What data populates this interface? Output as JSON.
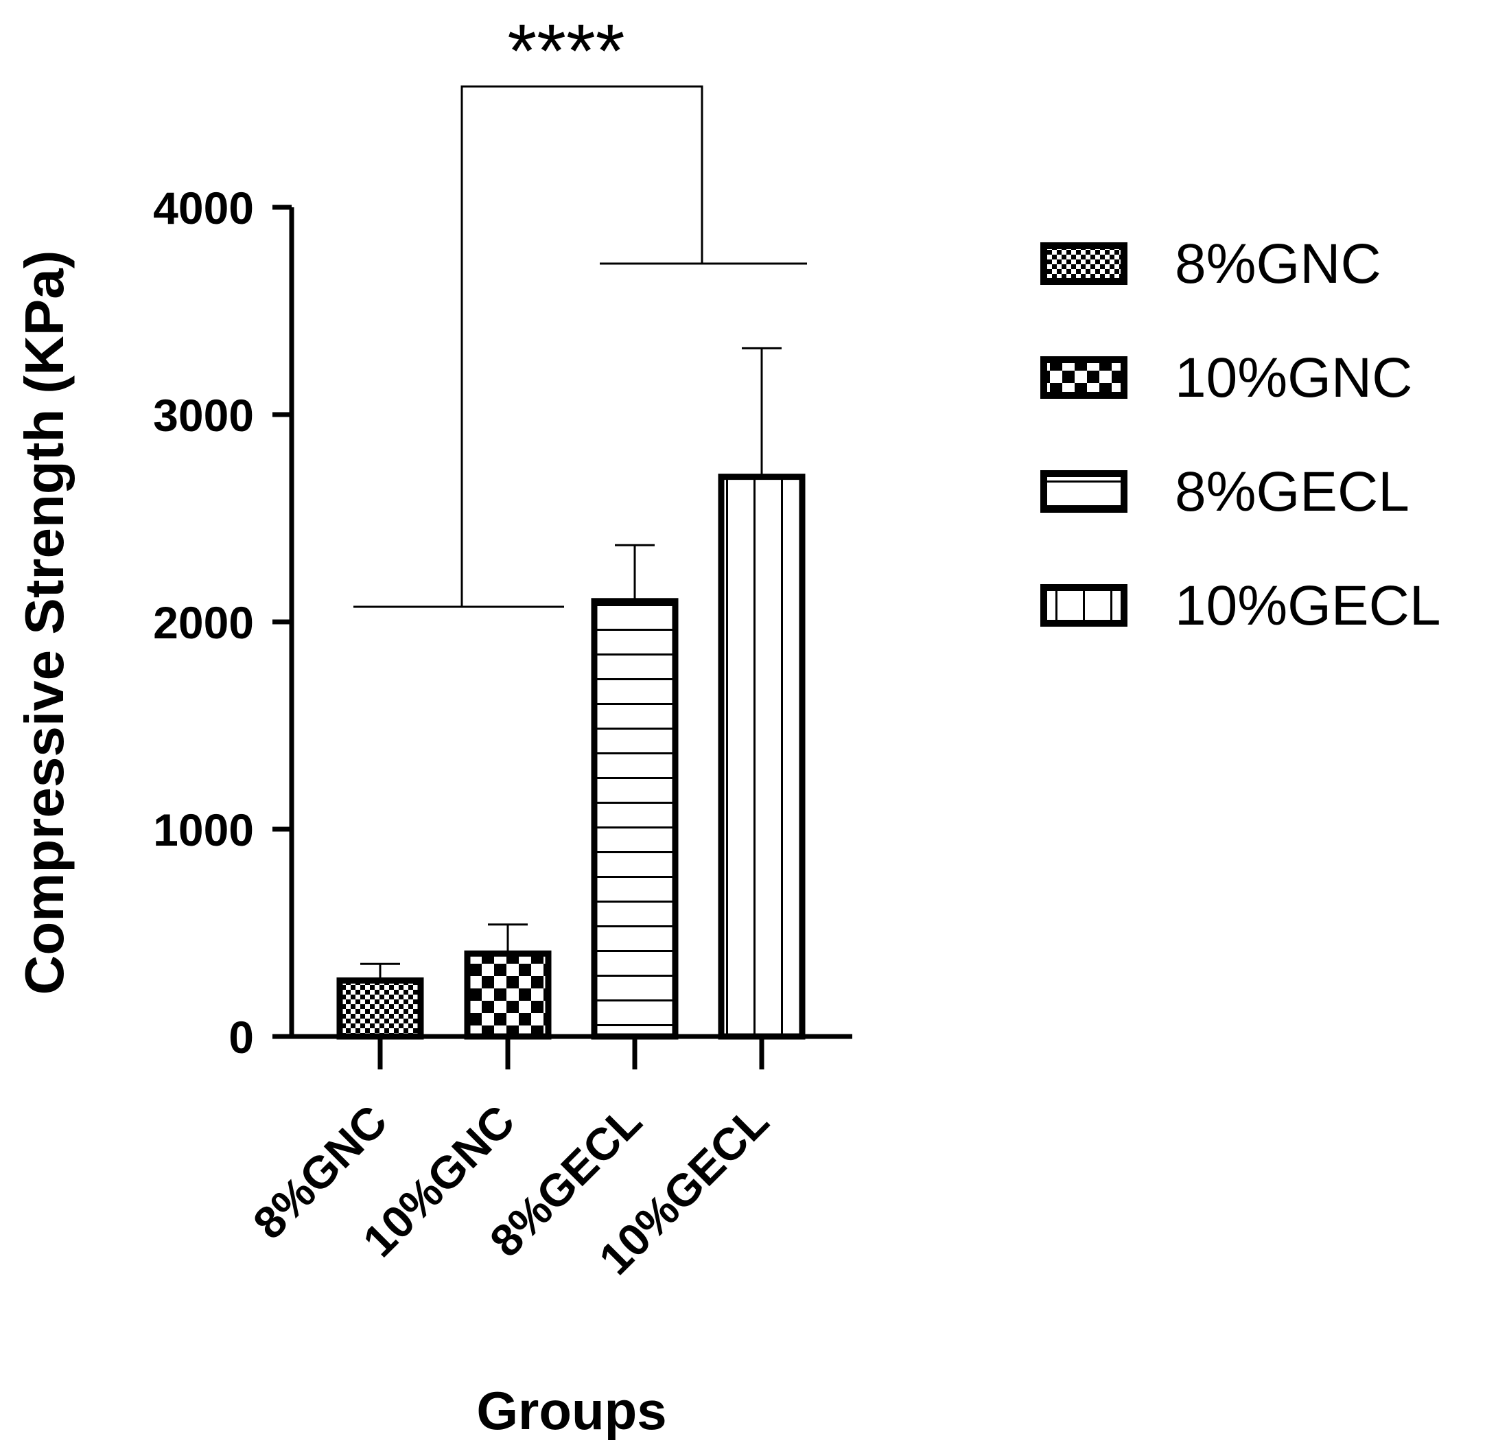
{
  "chart_data": {
    "type": "bar",
    "title": "",
    "xlabel": "Groups",
    "ylabel": "Compressive Strength (KPa)",
    "ylim": [
      0,
      4000
    ],
    "yticks": [
      "0",
      "1000",
      "2000",
      "3000",
      "4000"
    ],
    "categories": [
      "8%GNC",
      "10%GNC",
      "8%GECL",
      "10%GECL"
    ],
    "values": [
      270,
      400,
      2100,
      2700
    ],
    "errors": [
      80,
      140,
      270,
      620
    ],
    "patterns": [
      "small-check",
      "large-check",
      "horizontal-lines",
      "vertical-lines"
    ],
    "legend": {
      "position": "right",
      "entries": [
        "8%GNC",
        "10%GNC",
        "8%GECL",
        "10%GECL"
      ]
    },
    "significance": {
      "label": "****",
      "left_group": [
        "8%GNC",
        "10%GNC"
      ],
      "right_group": [
        "8%GECL",
        "10%GECL"
      ]
    },
    "colors": {
      "bar_stroke": "#000000",
      "background": "#ffffff"
    },
    "grid": false
  }
}
